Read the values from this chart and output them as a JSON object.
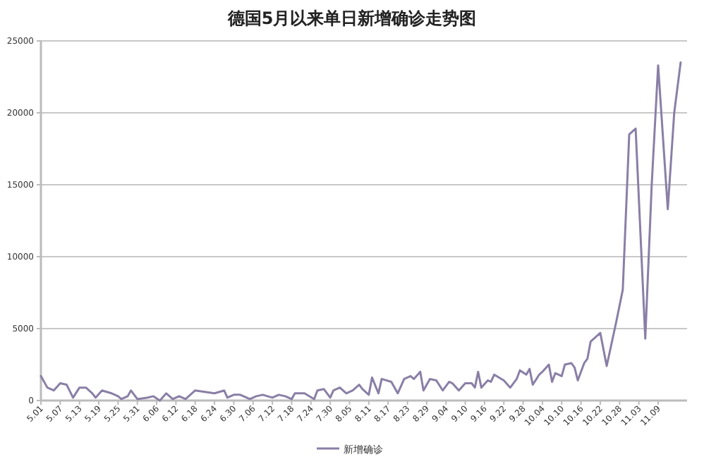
{
  "chart_data": {
    "type": "line",
    "title": "德国5月以来单日新增确诊走势图",
    "xlim": [
      "--05-01",
      "--11-18"
    ],
    "xticks": [
      {
        "value": "--05-01",
        "label": "5.01"
      },
      {
        "value": "--05-07",
        "label": "5.07"
      },
      {
        "value": "--05-13",
        "label": "5.13"
      },
      {
        "value": "--05-19",
        "label": "5.19"
      },
      {
        "value": "--05-25",
        "label": "5.25"
      },
      {
        "value": "--05-31",
        "label": "5.31"
      },
      {
        "value": "--06-06",
        "label": "6.06"
      },
      {
        "value": "--06-12",
        "label": "6.12"
      },
      {
        "value": "--06-18",
        "label": "6.18"
      },
      {
        "value": "--06-24",
        "label": "6.24"
      },
      {
        "value": "--06-30",
        "label": "6.30"
      },
      {
        "value": "--07-06",
        "label": "7.06"
      },
      {
        "value": "--07-12",
        "label": "7.12"
      },
      {
        "value": "--07-18",
        "label": "7.18"
      },
      {
        "value": "--07-24",
        "label": "7.24"
      },
      {
        "value": "--07-30",
        "label": "7.30"
      },
      {
        "value": "--08-05",
        "label": "8.05"
      },
      {
        "value": "--08-11",
        "label": "8.11"
      },
      {
        "value": "--08-17",
        "label": "8.17"
      },
      {
        "value": "--08-23",
        "label": "8.23"
      },
      {
        "value": "--08-29",
        "label": "8.29"
      },
      {
        "value": "--09-04",
        "label": "9.04"
      },
      {
        "value": "--09-10",
        "label": "9.10"
      },
      {
        "value": "--09-16",
        "label": "9.16"
      },
      {
        "value": "--09-22",
        "label": "9.22"
      },
      {
        "value": "--09-28",
        "label": "9.28"
      },
      {
        "value": "--10-04",
        "label": "10.04"
      },
      {
        "value": "--10-10",
        "label": "10.10"
      },
      {
        "value": "--10-16",
        "label": "10.16"
      },
      {
        "value": "--10-22",
        "label": "10.22"
      },
      {
        "value": "--10-28",
        "label": "10.28"
      },
      {
        "value": "--11-03",
        "label": "11.03"
      },
      {
        "value": "--11-09",
        "label": "11.09"
      }
    ],
    "ylim": [
      0,
      25000
    ],
    "yticks": [
      0,
      5000,
      10000,
      15000,
      20000,
      25000
    ],
    "grid": "y",
    "legend": "bottom",
    "marker": "none",
    "line_style": "solid",
    "series": [
      {
        "name": "新增确诊",
        "color": "#8a7fa6",
        "x": [
          "--05-01",
          "--05-03",
          "--05-05",
          "--05-07",
          "--05-09",
          "--05-11",
          "--05-13",
          "--05-15",
          "--05-17",
          "--05-18",
          "--05-20",
          "--05-23",
          "--05-25",
          "--05-26",
          "--05-28",
          "--05-29",
          "--05-31",
          "--06-03",
          "--06-05",
          "--06-07",
          "--06-09",
          "--06-11",
          "--06-13",
          "--06-15",
          "--06-18",
          "--06-21",
          "--06-24",
          "--06-27",
          "--06-28",
          "--06-30",
          "--07-02",
          "--07-05",
          "--07-07",
          "--07-09",
          "--07-12",
          "--07-14",
          "--07-16",
          "--07-18",
          "--07-19",
          "--07-22",
          "--07-25",
          "--07-26",
          "--07-28",
          "--07-30",
          "--07-31",
          "--08-02",
          "--08-04",
          "--08-06",
          "--08-08",
          "--08-09",
          "--08-11",
          "--08-12",
          "--08-14",
          "--08-15",
          "--08-18",
          "--08-20",
          "--08-22",
          "--08-24",
          "--08-25",
          "--08-27",
          "--08-28",
          "--08-30",
          "--09-01",
          "--09-03",
          "--09-05",
          "--09-06",
          "--09-08",
          "--09-10",
          "--09-12",
          "--09-13",
          "--09-14",
          "--09-15",
          "--09-17",
          "--09-18",
          "--09-19",
          "--09-22",
          "--09-24",
          "--09-26",
          "--09-27",
          "--09-29",
          "--09-30",
          "--10-01",
          "--10-03",
          "--10-04",
          "--10-06",
          "--10-07",
          "--10-08",
          "--10-10",
          "--10-11",
          "--10-13",
          "--10-14",
          "--10-15",
          "--10-17",
          "--10-18",
          "--10-19",
          "--10-22",
          "--10-24",
          "--10-27",
          "--10-29",
          "--10-31",
          "--11-02",
          "--11-05",
          "--11-07",
          "--11-09",
          "--11-12",
          "--11-14",
          "--11-16"
        ],
        "values": [
          1700,
          900,
          700,
          1200,
          1100,
          200,
          900,
          900,
          500,
          200,
          700,
          500,
          300,
          100,
          300,
          700,
          100,
          200,
          300,
          0,
          500,
          100,
          300,
          100,
          700,
          600,
          500,
          700,
          200,
          400,
          400,
          100,
          300,
          400,
          200,
          400,
          300,
          100,
          500,
          500,
          100,
          700,
          800,
          200,
          700,
          900,
          500,
          700,
          1100,
          800,
          400,
          1600,
          500,
          1500,
          1300,
          500,
          1500,
          1700,
          1500,
          2000,
          700,
          1500,
          1400,
          700,
          1300,
          1200,
          700,
          1200,
          1200,
          900,
          2000,
          900,
          1400,
          1300,
          1800,
          1400,
          900,
          1500,
          2100,
          1800,
          2200,
          1100,
          1800,
          2000,
          2500,
          1300,
          1900,
          1700,
          2500,
          2600,
          2300,
          1400,
          2600,
          2900,
          4100,
          4700,
          2400,
          5500,
          7700,
          18500,
          18900,
          4300,
          15000,
          23300,
          13300,
          20000,
          23500
        ]
      }
    ]
  }
}
